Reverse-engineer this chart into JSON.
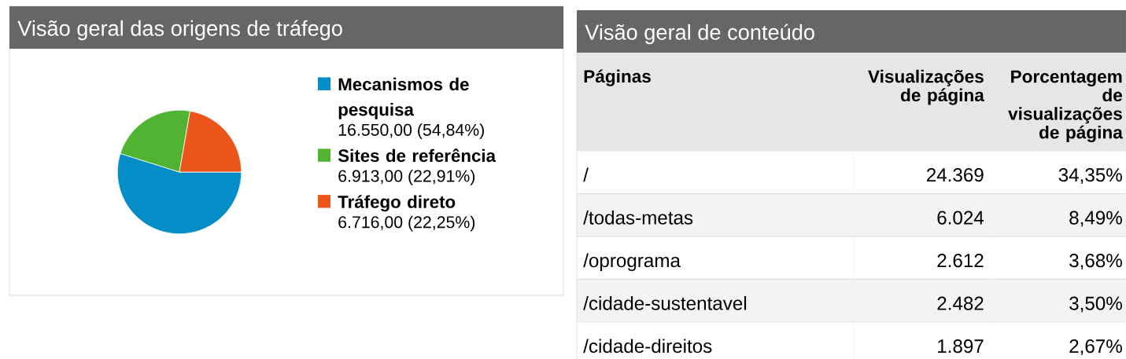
{
  "chart_data": [
    {
      "type": "pie",
      "title": "Visão geral das origens de tráfego",
      "categories": [
        "Mecanismos de pesquisa",
        "Sites de referência",
        "Tráfego direto"
      ],
      "values": [
        16550,
        6913,
        6716
      ],
      "colors": [
        "#058dc7",
        "#50b432",
        "#ed561b"
      ],
      "value_labels": [
        "16.550,00 (54,84%)",
        "6.913,00 (22,91%)",
        "6.716,00 (22,25%)"
      ],
      "legend": "right"
    },
    {
      "type": "other",
      "title": "Visão geral de conteúdo",
      "annotations": [
        "Páginas",
        "Visualizações de página",
        "Porcentagem de visualizações de página",
        "/",
        "24.369",
        "34,35%",
        "/todas-metas",
        "6.024",
        "8,49%",
        "/oprograma",
        "2.612",
        "3,68%",
        "/cidade-sustentavel",
        "2.482",
        "3,50%",
        "/cidade-direitos",
        "1.897",
        "2,67%"
      ]
    }
  ]
}
